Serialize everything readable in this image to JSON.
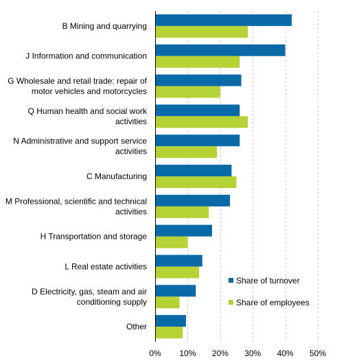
{
  "chart_data": {
    "type": "bar",
    "orientation": "horizontal",
    "categories": [
      [
        "B Mining and quarrying"
      ],
      [
        "J Information and communication"
      ],
      [
        "G Wholesale and retail trade: repair of",
        "motor vehicles and motorcycles"
      ],
      [
        "Q Human health and social work",
        "activities"
      ],
      [
        "N Administrative and support service",
        "activities"
      ],
      [
        "C Manufacturing"
      ],
      [
        "M Professional, scientific and technical",
        "activities"
      ],
      [
        "H Transportation and storage"
      ],
      [
        "L Real estate activities"
      ],
      [
        "D Electricity, gas, steam and air",
        "conditioning supply"
      ],
      [
        "Other"
      ]
    ],
    "series": [
      {
        "name": "Share of turnover",
        "color": "#0a6aa8",
        "values": [
          42,
          40,
          26.5,
          26,
          26,
          23.5,
          23,
          17.5,
          14.5,
          12.5,
          9.5
        ]
      },
      {
        "name": "Share of employees",
        "color": "#b5d334",
        "values": [
          28.5,
          26,
          20,
          28.5,
          19,
          25,
          16.5,
          10,
          13.5,
          7.5,
          8.5
        ]
      }
    ],
    "xlim": [
      0,
      50
    ],
    "xticks": [
      "0%",
      "10%",
      "20%",
      "30%",
      "40%",
      "50%"
    ],
    "grid": "vertical dashed",
    "legend": "bottom-right"
  }
}
